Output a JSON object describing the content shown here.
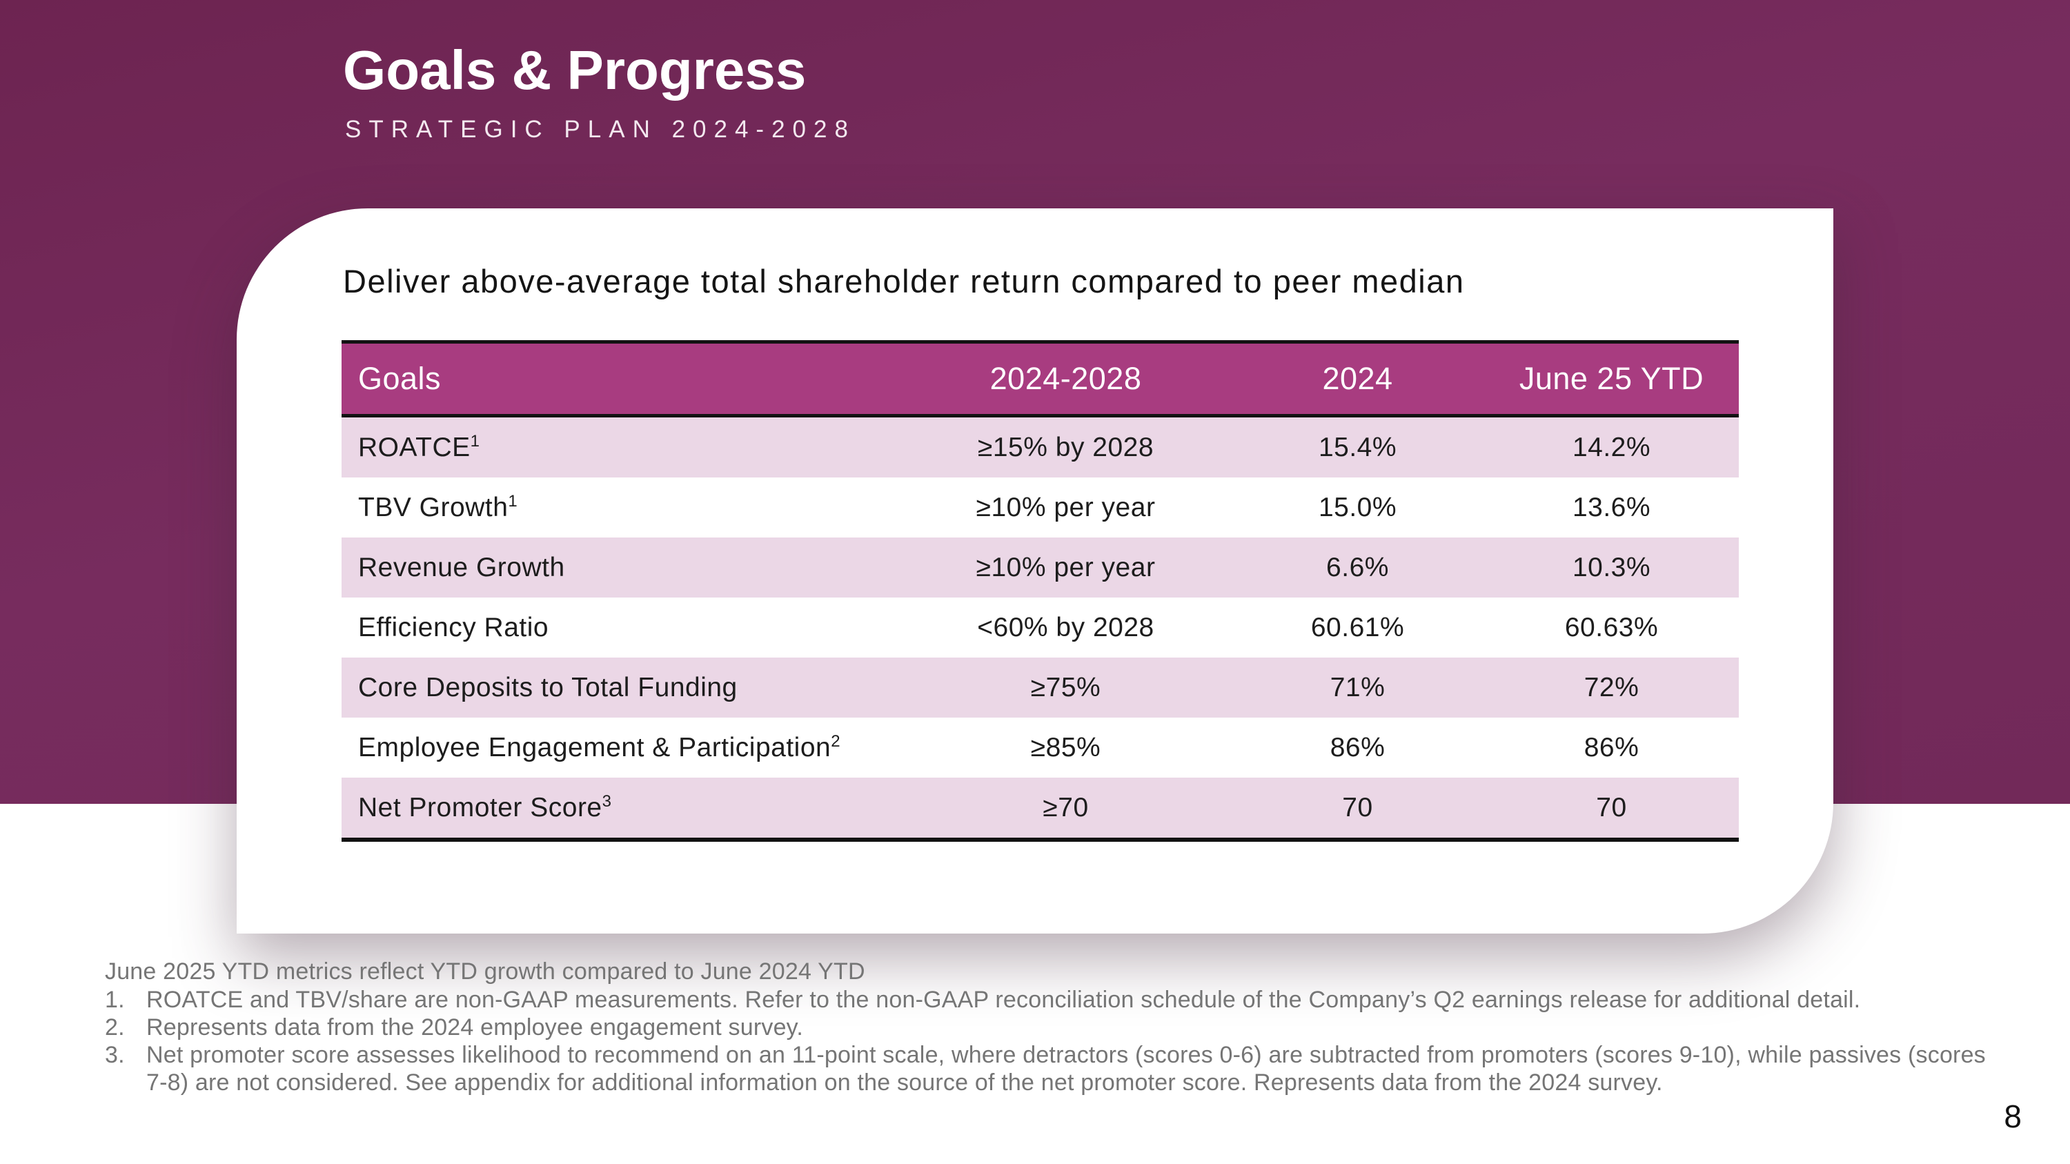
{
  "slide": {
    "title": "Goals & Progress",
    "subtitle": "STRATEGIC PLAN 2024-2028",
    "page_number": "8"
  },
  "card": {
    "heading": "Deliver above-average total shareholder return compared to peer median"
  },
  "table": {
    "columns": [
      "Goals",
      "2024-2028",
      "2024",
      "June 25 YTD"
    ],
    "rows": [
      {
        "goal": "ROATCE",
        "sup": "1",
        "target": "≥15% by 2028",
        "y2024": "15.4%",
        "june25_ytd": "14.2%"
      },
      {
        "goal": "TBV Growth",
        "sup": "1",
        "target": "≥10% per year",
        "y2024": "15.0%",
        "june25_ytd": "13.6%"
      },
      {
        "goal": "Revenue Growth",
        "sup": "",
        "target": "≥10% per year",
        "y2024": "6.6%",
        "june25_ytd": "10.3%"
      },
      {
        "goal": "Efficiency Ratio",
        "sup": "",
        "target": "<60% by 2028",
        "y2024": "60.61%",
        "june25_ytd": "60.63%"
      },
      {
        "goal": "Core Deposits to Total Funding",
        "sup": "",
        "target": "≥75%",
        "y2024": "71%",
        "june25_ytd": "72%"
      },
      {
        "goal": "Employee Engagement & Participation",
        "sup": "2",
        "target": "≥85%",
        "y2024": "86%",
        "june25_ytd": "86%"
      },
      {
        "goal": "Net Promoter Score",
        "sup": "3",
        "target": "≥70",
        "y2024": "70",
        "june25_ytd": "70"
      }
    ]
  },
  "footnotes": {
    "intro": "June 2025 YTD metrics reflect YTD growth compared to June 2024 YTD",
    "items": [
      "ROATCE and TBV/share are non-GAAP measurements. Refer to the non-GAAP reconciliation schedule of the Company’s Q2 earnings release for additional detail.",
      "Represents data from the 2024 employee engagement survey.",
      "Net promoter score assesses likelihood to recommend on an 11-point scale, where detractors (scores 0-6) are subtracted from promoters (scores 9-10), while passives (scores 7-8) are not considered. See appendix for additional information on the source of the net promoter score. Represents data from the 2024 survey."
    ]
  },
  "colors": {
    "background_purple": "#722959",
    "table_header_magenta": "#A83C80",
    "row_pink": "#EBD7E6",
    "border_black": "#121212",
    "footnote_gray": "#757575"
  }
}
